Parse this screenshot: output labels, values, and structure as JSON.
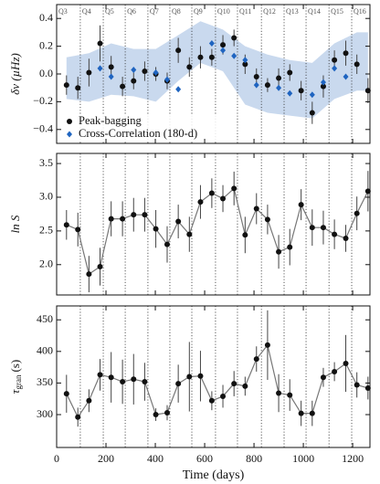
{
  "chart_data": [
    {
      "type": "scatter",
      "y_label": "δν (µHz)",
      "xlim": [
        0,
        1270
      ],
      "xticks": [
        0,
        200,
        400,
        600,
        800,
        1000,
        1200
      ],
      "ylim": [
        -0.5,
        0.5
      ],
      "yticks": [
        {
          "value": -0.4,
          "label": "−0.4"
        },
        {
          "value": -0.2,
          "label": "−0.2"
        },
        {
          "value": 0,
          "label": "0.0"
        },
        0.2,
        0.4
      ],
      "quarter_labels": [
        "Q3",
        "Q4",
        "Q5",
        "Q6",
        "Q7",
        "Q8",
        "Q9",
        "Q10",
        "Q11",
        "Q12",
        "Q13",
        "Q14",
        "Q15",
        "Q16"
      ],
      "quarter_boundaries": [
        96,
        189,
        278,
        370,
        459,
        548,
        644,
        733,
        830,
        922,
        1011,
        1104,
        1196
      ],
      "band": {
        "color": "#c9d9ee",
        "x": [
          40,
          131,
          221,
          312,
          402,
          493,
          583,
          674,
          764,
          855,
          945,
          1036,
          1126,
          1217,
          1262
        ],
        "upper": [
          0.12,
          0.15,
          0.22,
          0.18,
          0.18,
          0.28,
          0.38,
          0.32,
          0.2,
          0.14,
          0.1,
          0.08,
          0.22,
          0.3,
          0.3
        ],
        "lower": [
          -0.18,
          -0.2,
          -0.15,
          -0.16,
          -0.2,
          -0.05,
          0.08,
          0.02,
          -0.22,
          -0.28,
          -0.3,
          -0.32,
          -0.18,
          -0.12,
          -0.12
        ]
      },
      "legend": "lower left",
      "series": [
        {
          "name": "Peak-bagging",
          "color": "#111111",
          "marker": "circle",
          "x": [
            40,
            86,
            131,
            176,
            221,
            267,
            312,
            357,
            402,
            448,
            493,
            538,
            583,
            629,
            674,
            719,
            764,
            810,
            855,
            900,
            945,
            991,
            1036,
            1081,
            1126,
            1172,
            1217,
            1262
          ],
          "values": [
            -0.08,
            -0.1,
            0.01,
            0.22,
            0.05,
            -0.09,
            -0.05,
            0.02,
            0,
            -0.05,
            0.17,
            0.05,
            0.12,
            0.12,
            0.21,
            0.26,
            0.07,
            -0.02,
            -0.08,
            -0.03,
            0.01,
            -0.12,
            -0.28,
            -0.09,
            0.1,
            0.15,
            0.07,
            -0.12
          ],
          "errors": [
            0.07,
            0.08,
            0.1,
            0.13,
            0.08,
            0.07,
            0.06,
            0.07,
            0.05,
            0.06,
            0.09,
            0.07,
            0.08,
            0.06,
            0.07,
            0.06,
            0.07,
            0.06,
            0.05,
            0.07,
            0.06,
            0.07,
            0.08,
            0.08,
            0.07,
            0.09,
            0.07,
            0.09
          ]
        },
        {
          "name": "Cross-Correlation (180-d)",
          "color": "#1f64c0",
          "marker": "diamond",
          "x": [
            176,
            221,
            312,
            402,
            448,
            493,
            629,
            674,
            719,
            764,
            810,
            900,
            945,
            1036,
            1081,
            1126,
            1172
          ],
          "values": [
            0.04,
            -0.02,
            0.03,
            0.01,
            -0.04,
            -0.11,
            0.22,
            0.17,
            0.13,
            0.1,
            -0.08,
            -0.1,
            -0.14,
            -0.15,
            -0.06,
            0.04,
            -0.02
          ]
        }
      ]
    },
    {
      "type": "scatter",
      "y_label": "ln S",
      "xlim": [
        0,
        1270
      ],
      "xticks": [
        0,
        200,
        400,
        600,
        800,
        1000,
        1200
      ],
      "ylim": [
        1.55,
        3.65
      ],
      "yticks": [
        {
          "value": 2,
          "label": "2.0"
        },
        2.5,
        {
          "value": 3,
          "label": "3.0"
        },
        3.5
      ],
      "series": [
        {
          "color": "#111111",
          "line_color": "#777777",
          "marker": "circle",
          "connect": true,
          "x": [
            40,
            86,
            131,
            176,
            221,
            267,
            312,
            357,
            402,
            448,
            493,
            538,
            583,
            629,
            674,
            719,
            764,
            810,
            855,
            900,
            945,
            991,
            1036,
            1081,
            1126,
            1172,
            1217,
            1262
          ],
          "values": [
            2.59,
            2.52,
            1.86,
            1.97,
            2.68,
            2.68,
            2.74,
            2.74,
            2.53,
            2.3,
            2.64,
            2.45,
            2.93,
            3.06,
            2.98,
            3.13,
            2.44,
            2.83,
            2.67,
            2.19,
            2.26,
            2.89,
            2.55,
            2.55,
            2.45,
            2.39,
            2.76,
            3.09
          ],
          "errors": [
            0.22,
            0.25,
            0.27,
            0.28,
            0.26,
            0.26,
            0.25,
            0.25,
            0.28,
            0.27,
            0.25,
            0.26,
            0.25,
            0.22,
            0.2,
            0.25,
            0.27,
            0.23,
            0.22,
            0.25,
            0.27,
            0.23,
            0.27,
            0.25,
            0.22,
            0.2,
            0.25,
            0.3
          ]
        }
      ]
    },
    {
      "type": "scatter",
      "y_label": {
        "symbol": "τ",
        "subscript": "gran",
        "unit": "(s)"
      },
      "x_label": "Time (days)",
      "xlim": [
        0,
        1270
      ],
      "xticks": [
        0,
        200,
        400,
        600,
        800,
        1000,
        1200
      ],
      "ylim": [
        248,
        472
      ],
      "yticks": [
        300,
        350,
        400,
        450
      ],
      "series": [
        {
          "color": "#111111",
          "line_color": "#777777",
          "marker": "circle",
          "connect": true,
          "x": [
            40,
            86,
            131,
            176,
            221,
            267,
            312,
            357,
            402,
            448,
            493,
            538,
            583,
            629,
            674,
            719,
            764,
            810,
            855,
            900,
            945,
            991,
            1036,
            1081,
            1126,
            1172,
            1217,
            1262
          ],
          "values": [
            333,
            296,
            322,
            363,
            359,
            352,
            356,
            352,
            300,
            303,
            349,
            360,
            361,
            322,
            329,
            349,
            345,
            388,
            410,
            334,
            331,
            302,
            302,
            359,
            368,
            381,
            347,
            342
          ],
          "errors": [
            30,
            15,
            18,
            25,
            40,
            35,
            40,
            30,
            10,
            12,
            30,
            55,
            40,
            15,
            18,
            20,
            15,
            20,
            55,
            30,
            25,
            20,
            20,
            15,
            15,
            45,
            20,
            18
          ]
        }
      ]
    }
  ]
}
